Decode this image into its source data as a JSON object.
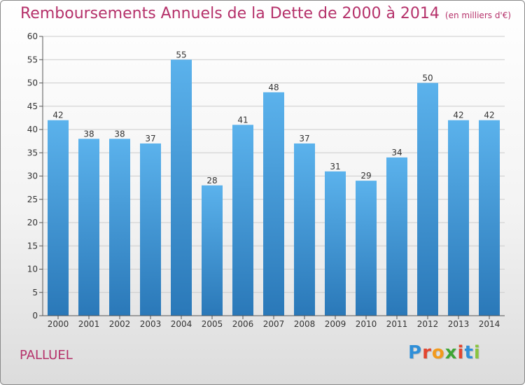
{
  "header": {
    "title": "Remboursements Annuels de la Dette de 2000 à 2014",
    "subtitle": "(en milliers d'€)"
  },
  "footer": {
    "commune": "PALLUEL"
  },
  "logo": {
    "text": "Proxiti",
    "letter_colors": [
      "#2f8fd8",
      "#e2452f",
      "#f29a1d",
      "#3fa535",
      "#e2452f",
      "#2f8fd8",
      "#8ac43f"
    ]
  },
  "colors": {
    "bar_top": "#5bb2ec",
    "bar_bottom": "#2a78b8",
    "title": "#b5316a",
    "grid": "#cccccc"
  },
  "chart_data": {
    "type": "bar",
    "categories": [
      "2000",
      "2001",
      "2002",
      "2003",
      "2004",
      "2005",
      "2006",
      "2007",
      "2008",
      "2009",
      "2010",
      "2011",
      "2012",
      "2013",
      "2014"
    ],
    "values": [
      42,
      38,
      38,
      37,
      55,
      28,
      41,
      48,
      37,
      31,
      29,
      34,
      50,
      42,
      42
    ],
    "ylim": [
      0,
      60
    ],
    "yticks": [
      0,
      5,
      10,
      15,
      20,
      25,
      30,
      35,
      40,
      45,
      50,
      55,
      60
    ],
    "grid": true,
    "data_labels": true
  }
}
